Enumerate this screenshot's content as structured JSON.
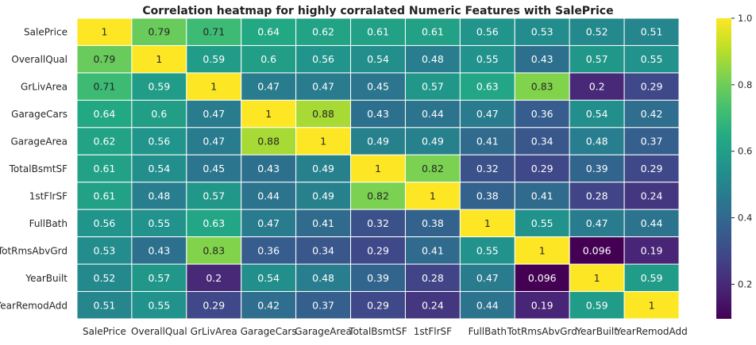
{
  "chart_data": {
    "type": "heatmap",
    "title": "Correlation heatmap for highly corralated Numeric Features with SalePrice",
    "xlabel": "",
    "ylabel": "",
    "labels": [
      "SalePrice",
      "OverallQual",
      "GrLivArea",
      "GarageCars",
      "GarageArea",
      "TotalBsmtSF",
      "1stFlrSF",
      "FullBath",
      "TotRmsAbvGrd",
      "YearBuilt",
      "YearRemodAdd"
    ],
    "matrix": [
      [
        1,
        0.79,
        0.71,
        0.64,
        0.62,
        0.61,
        0.61,
        0.56,
        0.53,
        0.52,
        0.51
      ],
      [
        0.79,
        1,
        0.59,
        0.6,
        0.56,
        0.54,
        0.48,
        0.55,
        0.43,
        0.57,
        0.55
      ],
      [
        0.71,
        0.59,
        1,
        0.47,
        0.47,
        0.45,
        0.57,
        0.63,
        0.83,
        0.2,
        0.29
      ],
      [
        0.64,
        0.6,
        0.47,
        1,
        0.88,
        0.43,
        0.44,
        0.47,
        0.36,
        0.54,
        0.42
      ],
      [
        0.62,
        0.56,
        0.47,
        0.88,
        1,
        0.49,
        0.49,
        0.41,
        0.34,
        0.48,
        0.37
      ],
      [
        0.61,
        0.54,
        0.45,
        0.43,
        0.49,
        1,
        0.82,
        0.32,
        0.29,
        0.39,
        0.29
      ],
      [
        0.61,
        0.48,
        0.57,
        0.44,
        0.49,
        0.82,
        1,
        0.38,
        0.41,
        0.28,
        0.24
      ],
      [
        0.56,
        0.55,
        0.63,
        0.47,
        0.41,
        0.32,
        0.38,
        1,
        0.55,
        0.47,
        0.44
      ],
      [
        0.53,
        0.43,
        0.83,
        0.36,
        0.34,
        0.29,
        0.41,
        0.55,
        1,
        0.096,
        0.19
      ],
      [
        0.52,
        0.57,
        0.2,
        0.54,
        0.48,
        0.39,
        0.28,
        0.47,
        0.096,
        1,
        0.59
      ],
      [
        0.51,
        0.55,
        0.29,
        0.42,
        0.37,
        0.29,
        0.24,
        0.44,
        0.19,
        0.59,
        1
      ]
    ],
    "colormap": "viridis",
    "vmin": 0.096,
    "vmax": 1,
    "colorbar_ticks": [
      0.2,
      0.4,
      0.6,
      0.8,
      1.0
    ],
    "colorbar_tick_labels": [
      "0.2",
      "0.4",
      "0.6",
      "0.8",
      "1.0"
    ],
    "annotated": true,
    "cell_border_color": "#ffffff",
    "colorbar": "right",
    "grid": false
  }
}
